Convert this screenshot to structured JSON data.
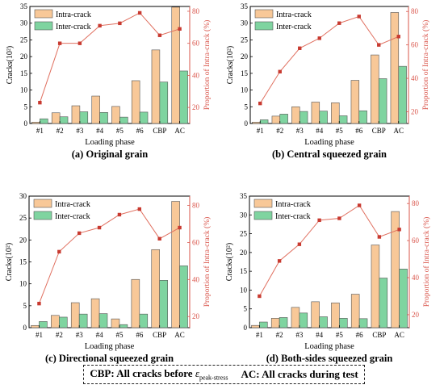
{
  "colors": {
    "intra": "#f8c898",
    "inter": "#7fd4a0",
    "line": "#e07060",
    "marker": "#c83a30",
    "right_axis": "#d9544a"
  },
  "footer": {
    "cbp_label": "CBP:",
    "cbp_text": "All cracks before",
    "epsilon": "ε",
    "peak_stress": "peak-stress",
    "ac_label": "AC:",
    "ac_text": "All cracks during test"
  },
  "chart_data": [
    {
      "type": "bar",
      "title": "(a) Original grain",
      "xlabel": "Loading phase",
      "ylabel": "Cracks(10²)",
      "y2label": "Proportion of Intra-crack (%)",
      "categories": [
        "#1",
        "#2",
        "#3",
        "#4",
        "#5",
        "#6",
        "CBP",
        "AC"
      ],
      "ylim": [
        0,
        35
      ],
      "yticks": [
        0,
        5,
        10,
        15,
        20,
        25,
        30,
        35
      ],
      "y2lim": [
        10,
        83
      ],
      "y2ticks": [
        20,
        40,
        60,
        80
      ],
      "legend": "top-left",
      "series": [
        {
          "name": "Intra-crack",
          "values": [
            0.4,
            3.2,
            5.3,
            8.2,
            5.1,
            12.8,
            22.0,
            34.8
          ]
        },
        {
          "name": "Inter-crack",
          "values": [
            1.4,
            2.0,
            3.5,
            3.3,
            1.9,
            3.4,
            12.4,
            15.7
          ]
        }
      ],
      "line": {
        "name": "Proportion of Intra-crack",
        "values": [
          23,
          60,
          60,
          71,
          72.5,
          79,
          65,
          69
        ]
      }
    },
    {
      "type": "bar",
      "title": "(b) Central squeezed grain",
      "xlabel": "Loading phase",
      "ylabel": "Cracks(10²)",
      "y2label": "Proportion of Intra-crack (%)",
      "categories": [
        "#1",
        "#2",
        "#3",
        "#4",
        "#5",
        "#6",
        "CBP",
        "AC"
      ],
      "ylim": [
        0,
        35
      ],
      "yticks": [
        0,
        5,
        10,
        15,
        20,
        25,
        30,
        35
      ],
      "y2lim": [
        13,
        83
      ],
      "y2ticks": [
        20,
        40,
        60,
        80
      ],
      "legend": "top-left",
      "series": [
        {
          "name": "Intra-crack",
          "values": [
            0.4,
            2.2,
            5.0,
            6.4,
            6.2,
            12.9,
            20.5,
            33.2
          ]
        },
        {
          "name": "Inter-crack",
          "values": [
            1.1,
            2.8,
            3.6,
            3.7,
            2.3,
            3.8,
            13.4,
            17.1
          ]
        }
      ],
      "line": {
        "name": "Proportion of Intra-crack",
        "values": [
          25,
          44,
          58,
          64,
          73,
          77,
          60,
          65
        ]
      }
    },
    {
      "type": "bar",
      "title": "(c) Directional squeezed grain",
      "xlabel": "Loading phase",
      "ylabel": "Cracks(10²)",
      "y2label": "Proportion of Intra-crack (%)",
      "categories": [
        "#1",
        "#2",
        "#3",
        "#4",
        "#5",
        "#6",
        "CBP",
        "AC"
      ],
      "ylim": [
        0,
        30
      ],
      "yticks": [
        0,
        5,
        10,
        15,
        20,
        25,
        30
      ],
      "y2lim": [
        14,
        85
      ],
      "y2ticks": [
        20,
        40,
        60,
        80
      ],
      "legend": "top-left",
      "series": [
        {
          "name": "Intra-crack",
          "values": [
            0.5,
            2.8,
            5.7,
            6.6,
            2.0,
            11.0,
            17.8,
            28.8
          ]
        },
        {
          "name": "Inter-crack",
          "values": [
            1.4,
            2.4,
            3.1,
            3.2,
            0.7,
            3.1,
            10.8,
            14.1
          ]
        }
      ],
      "line": {
        "name": "Proportion of Intra-crack",
        "values": [
          27,
          55,
          65,
          68,
          75,
          78,
          62,
          68
        ]
      }
    },
    {
      "type": "bar",
      "title": "(d) Both-sides squeezed grain",
      "xlabel": "Loading phase",
      "ylabel": "Cracks(10²)",
      "y2label": "Proportion of Intra-crack (%)",
      "categories": [
        "#1",
        "#2",
        "#3",
        "#4",
        "#5",
        "#6",
        "CBP",
        "AC"
      ],
      "ylim": [
        0,
        35
      ],
      "yticks": [
        0,
        5,
        10,
        15,
        20,
        25,
        30,
        35
      ],
      "y2lim": [
        13,
        84
      ],
      "y2ticks": [
        20,
        40,
        60,
        80
      ],
      "legend": "top-left",
      "series": [
        {
          "name": "Intra-crack",
          "values": [
            0.6,
            2.5,
            5.4,
            6.9,
            6.6,
            8.9,
            22.0,
            30.9
          ]
        },
        {
          "name": "Inter-crack",
          "values": [
            1.5,
            2.7,
            3.9,
            2.9,
            2.5,
            2.4,
            13.2,
            15.6
          ]
        }
      ],
      "line": {
        "name": "Proportion of Intra-crack",
        "values": [
          30,
          49,
          58,
          71,
          72,
          79,
          62,
          66
        ]
      }
    }
  ]
}
